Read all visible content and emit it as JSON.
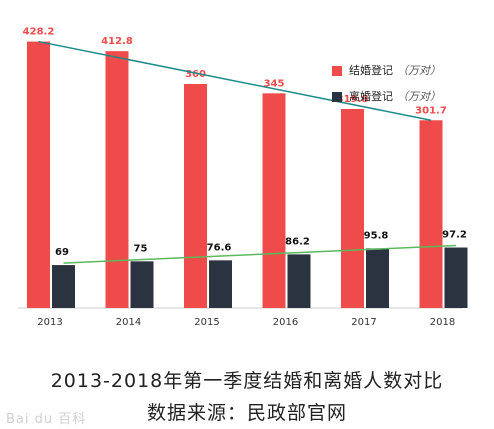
{
  "chart_data": {
    "type": "bar",
    "title": "2013-2018年第一季度结婚和离婚人数对比",
    "source": "数据来源：民政部官网",
    "categories": [
      "2013",
      "2014",
      "2015",
      "2016",
      "2017",
      "2018"
    ],
    "series": [
      {
        "name": "结婚登记",
        "unit": "（万对）",
        "values": [
          428.2,
          412.8,
          360,
          345,
          319.8,
          301.7
        ],
        "color": "#ef4b4b",
        "label_color": "#ef4b4b"
      },
      {
        "name": "离婚登记",
        "unit": "（万对）",
        "values": [
          69,
          75,
          76.6,
          86.2,
          95.8,
          97.2
        ],
        "color": "#2c3340",
        "label_color": "#111111"
      }
    ],
    "trend_colors": [
      "#1f8a8a",
      "#5cb85c"
    ],
    "ylim": [
      0,
      450
    ],
    "legend": "top-right",
    "grid": false
  },
  "watermark": "Bai du 百科"
}
